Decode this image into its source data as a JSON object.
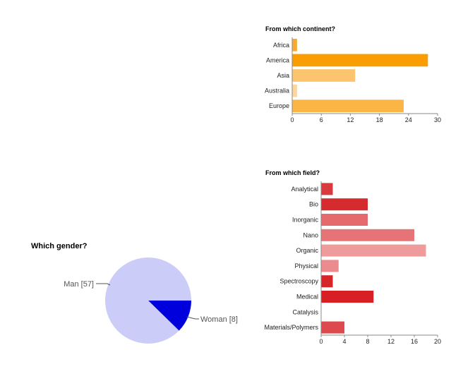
{
  "chart_data": [
    {
      "type": "bar",
      "orientation": "horizontal",
      "title": "From which continent?",
      "categories": [
        "Africa",
        "America",
        "Asia",
        "Australia",
        "Europe"
      ],
      "values": [
        1,
        28,
        13,
        1,
        23
      ],
      "colors": [
        "#f9a832",
        "#f99d00",
        "#fcc46e",
        "#fdd59e",
        "#fbb544"
      ],
      "xlim": [
        0,
        30
      ],
      "xticks": [
        "0",
        "6",
        "12",
        "18",
        "24",
        "30"
      ],
      "grid": false,
      "legend": "none"
    },
    {
      "type": "bar",
      "orientation": "horizontal",
      "title": "From which field?",
      "categories": [
        "Analytical",
        "Bio",
        "Inorganic",
        "Nano",
        "Organic",
        "Physical",
        "Spectroscopy",
        "Medical",
        "Catalysis",
        "Materials/Polymers"
      ],
      "values": [
        2,
        8,
        8,
        16,
        18,
        3,
        2,
        9,
        0,
        4
      ],
      "colors": [
        "#d93a3e",
        "#d52a2e",
        "#e46a6c",
        "#e67477",
        "#ef9a9b",
        "#eb8b8d",
        "#d7262a",
        "#d82024",
        "#d82024",
        "#dc4a4d"
      ],
      "xlim": [
        0,
        20
      ],
      "xticks": [
        "0",
        "4",
        "8",
        "12",
        "16",
        "20"
      ],
      "grid": false,
      "legend": "none"
    },
    {
      "type": "pie",
      "title": "Which gender?",
      "slices": [
        {
          "label": "Man [57]",
          "value": 57,
          "color": "#ccccf8"
        },
        {
          "label": "Woman [8]",
          "value": 8,
          "color": "#0000dd"
        }
      ],
      "legend": "labels"
    }
  ]
}
